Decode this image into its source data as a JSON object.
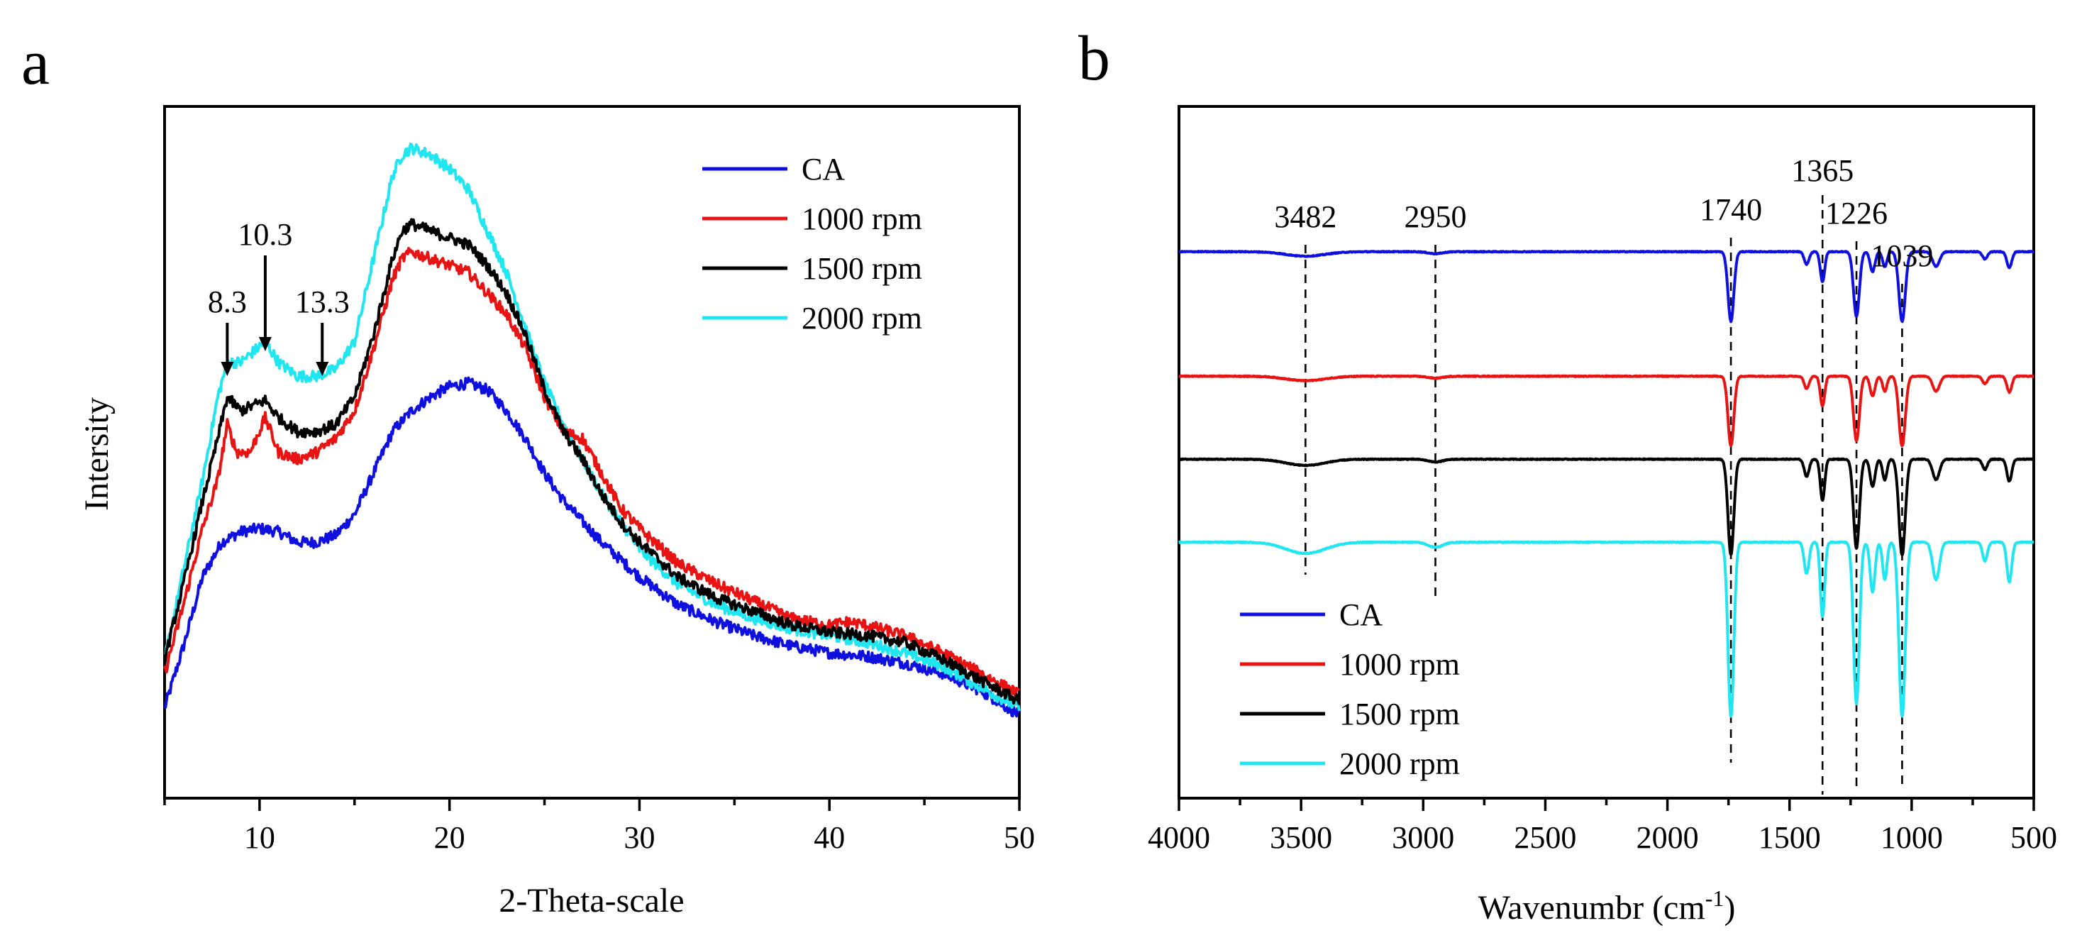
{
  "chart_data": [
    {
      "panel": "a",
      "type": "line",
      "xlabel": "2-Theta-scale",
      "ylabel": "Intersity",
      "xlim": [
        5,
        50
      ],
      "ylim": [
        0,
        100
      ],
      "x_ticks": [
        10,
        20,
        30,
        40,
        50
      ],
      "grid": false,
      "legend_position": "top-right",
      "annotations": [
        {
          "label": "8.3",
          "x": 8.3
        },
        {
          "label": "10.3",
          "x": 10.3
        },
        {
          "label": "13.3",
          "x": 13.3
        }
      ],
      "series": [
        {
          "name": "CA",
          "color": "#0f0fe0",
          "points": [
            [
              5,
              13
            ],
            [
              6,
              22
            ],
            [
              7,
              32
            ],
            [
              8,
              37
            ],
            [
              9,
              38.5
            ],
            [
              10,
              39
            ],
            [
              11,
              38.5
            ],
            [
              12,
              37
            ],
            [
              13,
              37
            ],
            [
              14,
              38
            ],
            [
              15,
              41
            ],
            [
              16,
              47
            ],
            [
              17,
              53
            ],
            [
              18,
              56
            ],
            [
              19,
              58
            ],
            [
              20,
              59.5
            ],
            [
              21,
              60
            ],
            [
              22,
              59
            ],
            [
              23,
              56
            ],
            [
              24,
              52
            ],
            [
              25,
              47
            ],
            [
              26,
              43
            ],
            [
              28,
              37
            ],
            [
              30,
              32
            ],
            [
              32,
              28
            ],
            [
              34,
              25.5
            ],
            [
              36,
              23.5
            ],
            [
              38,
              22
            ],
            [
              40,
              21
            ],
            [
              42,
              20.5
            ],
            [
              44,
              19.5
            ],
            [
              46,
              18
            ],
            [
              48,
              15.5
            ],
            [
              50,
              12
            ]
          ]
        },
        {
          "name": "1000 rpm",
          "color": "#e81414",
          "points": [
            [
              5,
              18
            ],
            [
              6,
              28
            ],
            [
              7,
              39
            ],
            [
              7.8,
              46
            ],
            [
              8.3,
              54
            ],
            [
              8.8,
              50
            ],
            [
              9.5,
              50
            ],
            [
              10.3,
              55
            ],
            [
              11,
              50
            ],
            [
              12,
              49
            ],
            [
              13,
              50
            ],
            [
              14,
              52
            ],
            [
              15,
              56
            ],
            [
              16,
              65
            ],
            [
              17,
              75
            ],
            [
              17.5,
              78
            ],
            [
              18,
              79
            ],
            [
              19,
              78
            ],
            [
              20,
              77
            ],
            [
              21,
              76
            ],
            [
              22,
              73
            ],
            [
              23,
              70
            ],
            [
              24,
              65
            ],
            [
              25,
              58
            ],
            [
              26,
              53
            ],
            [
              27,
              52
            ],
            [
              28,
              47
            ],
            [
              29,
              42
            ],
            [
              30,
              39
            ],
            [
              32,
              34
            ],
            [
              34,
              31
            ],
            [
              36,
              28.5
            ],
            [
              38,
              26
            ],
            [
              40,
              25
            ],
            [
              41,
              25.5
            ],
            [
              42,
              25
            ],
            [
              44,
              23.5
            ],
            [
              46,
              21
            ],
            [
              48,
              18
            ],
            [
              50,
              15
            ]
          ]
        },
        {
          "name": "1500 rpm",
          "color": "#000000",
          "points": [
            [
              5,
              20
            ],
            [
              6,
              31
            ],
            [
              7,
              43
            ],
            [
              7.8,
              52
            ],
            [
              8.3,
              58
            ],
            [
              9,
              56
            ],
            [
              10.3,
              57.5
            ],
            [
              11,
              55
            ],
            [
              12,
              53
            ],
            [
              13,
              53
            ],
            [
              14,
              54
            ],
            [
              15,
              58
            ],
            [
              16,
              67
            ],
            [
              17,
              78
            ],
            [
              17.5,
              82
            ],
            [
              18,
              83
            ],
            [
              19,
              82
            ],
            [
              20,
              81
            ],
            [
              21,
              80
            ],
            [
              22,
              77
            ],
            [
              23,
              73
            ],
            [
              24,
              67
            ],
            [
              25,
              59
            ],
            [
              26,
              53
            ],
            [
              27,
              49
            ],
            [
              28,
              44
            ],
            [
              29,
              40
            ],
            [
              30,
              37
            ],
            [
              32,
              32
            ],
            [
              34,
              29
            ],
            [
              36,
              27
            ],
            [
              38,
              25
            ],
            [
              40,
              24
            ],
            [
              42,
              23.5
            ],
            [
              44,
              22.5
            ],
            [
              46,
              20
            ],
            [
              48,
              17
            ],
            [
              50,
              14
            ]
          ]
        },
        {
          "name": "2000 rpm",
          "color": "#1fe6f0",
          "points": [
            [
              5,
              20
            ],
            [
              6,
              33
            ],
            [
              7,
              46
            ],
            [
              7.8,
              58
            ],
            [
              8.3,
              63
            ],
            [
              9,
              63
            ],
            [
              10.3,
              66
            ],
            [
              11,
              63
            ],
            [
              12,
              61
            ],
            [
              13,
              61
            ],
            [
              14,
              62
            ],
            [
              15,
              66
            ],
            [
              16,
              78
            ],
            [
              17,
              90
            ],
            [
              17.5,
              93
            ],
            [
              18,
              94
            ],
            [
              19,
              93
            ],
            [
              20,
              91
            ],
            [
              21,
              88
            ],
            [
              22,
              82
            ],
            [
              23,
              76
            ],
            [
              24,
              68
            ],
            [
              25,
              60
            ],
            [
              26,
              54
            ],
            [
              27,
              49
            ],
            [
              28,
              44
            ],
            [
              29,
              40
            ],
            [
              30,
              36
            ],
            [
              32,
              31
            ],
            [
              34,
              28
            ],
            [
              36,
              26
            ],
            [
              38,
              24.5
            ],
            [
              40,
              23.5
            ],
            [
              42,
              22.5
            ],
            [
              44,
              21
            ],
            [
              46,
              19
            ],
            [
              48,
              16
            ],
            [
              50,
              13
            ]
          ]
        }
      ]
    },
    {
      "panel": "b",
      "type": "line",
      "xlabel": "Wavenumbr (cm",
      "xlabel_sup": "-1",
      "xlabel_close": ")",
      "xlim": [
        4000,
        500
      ],
      "ylim": [
        0,
        100
      ],
      "x_ticks": [
        4000,
        3500,
        3000,
        2500,
        2000,
        1500,
        1000,
        500
      ],
      "grid": false,
      "legend_position": "bottom-left",
      "annotations": [
        {
          "label": "3482",
          "x": 3482
        },
        {
          "label": "2950",
          "x": 2950
        },
        {
          "label": "1740",
          "x": 1740
        },
        {
          "label": "1365",
          "x": 1365
        },
        {
          "label": "1226",
          "x": 1226
        },
        {
          "label": "1039",
          "x": 1039
        }
      ],
      "series": [
        {
          "name": "CA",
          "color": "#0f0fe0",
          "offset": 79,
          "scale": 0.4
        },
        {
          "name": "1000 rpm",
          "color": "#e81414",
          "offset": 61,
          "scale": 0.4
        },
        {
          "name": "1500 rpm",
          "color": "#000000",
          "offset": 49,
          "scale": 0.55
        },
        {
          "name": "2000 rpm",
          "color": "#1fe6f0",
          "offset": 37,
          "scale": 1.0
        }
      ]
    }
  ]
}
